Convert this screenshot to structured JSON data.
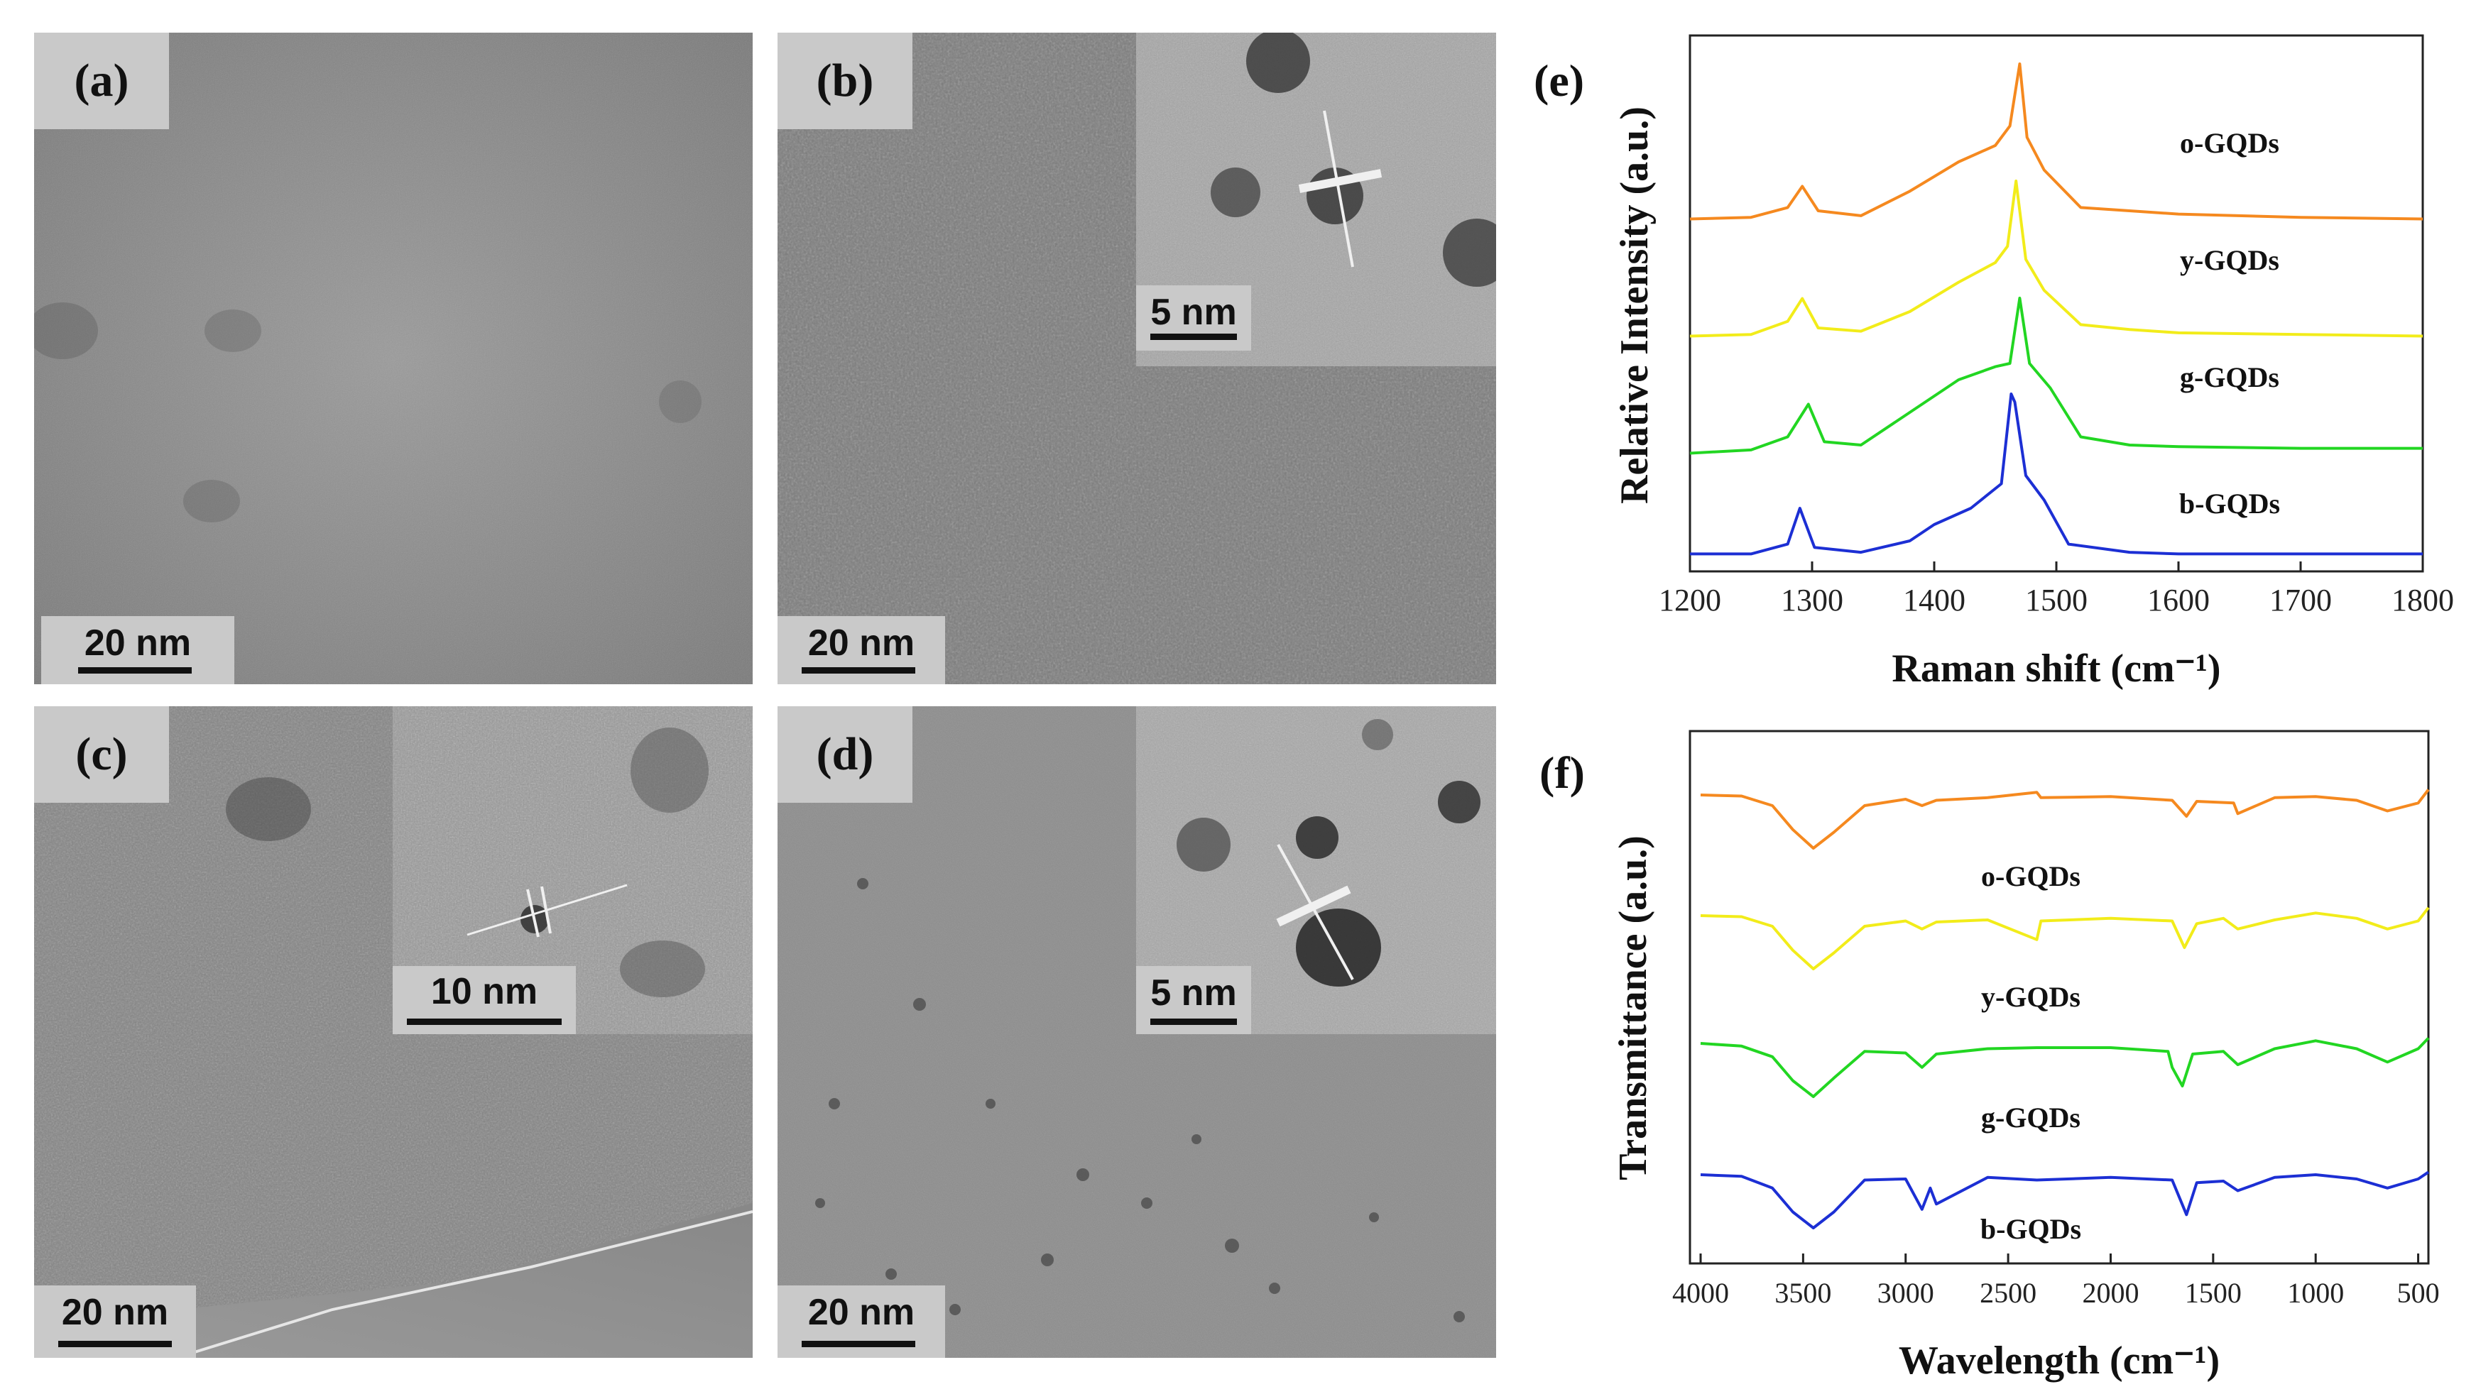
{
  "panels": {
    "a": {
      "label": "(a)",
      "scale": "20 nm"
    },
    "b": {
      "label": "(b)",
      "scale": "20 nm",
      "inset_scale": "5 nm"
    },
    "c": {
      "label": "(c)",
      "scale": "20 nm",
      "inset_scale": "10 nm"
    },
    "d": {
      "label": "(d)",
      "scale": "20 nm",
      "inset_scale": "5 nm"
    }
  },
  "chart_data": [
    {
      "type": "line",
      "panel_label": "(e)",
      "xlabel": "Raman shift (cm⁻¹)",
      "ylabel": "Relative Intensity (a.u.)",
      "xlim": [
        1200,
        1800
      ],
      "xticks": [
        1200,
        1300,
        1400,
        1500,
        1600,
        1700,
        1800
      ],
      "series": [
        {
          "name": "o-GQDs",
          "color": "#f5891f",
          "x": [
            1200,
            1250,
            1280,
            1292,
            1305,
            1340,
            1380,
            1420,
            1450,
            1462,
            1470,
            1476,
            1490,
            1520,
            1560,
            1600,
            1700,
            1800
          ],
          "y": [
            0.05,
            0.06,
            0.12,
            0.25,
            0.1,
            0.07,
            0.22,
            0.4,
            0.5,
            0.62,
            1.0,
            0.55,
            0.35,
            0.12,
            0.1,
            0.08,
            0.06,
            0.05
          ]
        },
        {
          "name": "y-GQDs",
          "color": "#f2ec1a",
          "x": [
            1200,
            1250,
            1280,
            1292,
            1305,
            1340,
            1380,
            1420,
            1450,
            1460,
            1467,
            1475,
            1490,
            1520,
            1560,
            1600,
            1700,
            1800
          ],
          "y": [
            0.05,
            0.06,
            0.14,
            0.28,
            0.1,
            0.08,
            0.2,
            0.38,
            0.5,
            0.6,
            1.0,
            0.52,
            0.33,
            0.12,
            0.09,
            0.07,
            0.06,
            0.05
          ]
        },
        {
          "name": "g-GQDs",
          "color": "#22d622",
          "x": [
            1200,
            1250,
            1280,
            1297,
            1310,
            1340,
            1380,
            1420,
            1450,
            1462,
            1470,
            1478,
            1495,
            1520,
            1560,
            1600,
            1700,
            1800
          ],
          "y": [
            0.05,
            0.07,
            0.15,
            0.35,
            0.12,
            0.1,
            0.3,
            0.5,
            0.58,
            0.6,
            1.0,
            0.6,
            0.45,
            0.15,
            0.1,
            0.09,
            0.08,
            0.08
          ]
        },
        {
          "name": "b-GQDs",
          "color": "#1c2fd4",
          "x": [
            1200,
            1250,
            1280,
            1290,
            1302,
            1340,
            1380,
            1400,
            1430,
            1455,
            1463,
            1466,
            1475,
            1490,
            1510,
            1560,
            1600,
            1700,
            1800
          ],
          "y": [
            0.02,
            0.02,
            0.08,
            0.3,
            0.06,
            0.03,
            0.1,
            0.2,
            0.3,
            0.45,
            1.0,
            0.95,
            0.5,
            0.35,
            0.08,
            0.03,
            0.02,
            0.02,
            0.02
          ]
        }
      ]
    },
    {
      "type": "line",
      "panel_label": "(f)",
      "xlabel": "Wavelength (cm⁻¹)",
      "ylabel": "Transmittance (a.u.)",
      "xlim": [
        4000,
        450
      ],
      "xticks": [
        4000,
        3500,
        3000,
        2500,
        2000,
        1500,
        1000,
        500
      ],
      "series": [
        {
          "name": "o-GQDs",
          "color": "#f5891f",
          "x": [
            4000,
            3800,
            3650,
            3550,
            3450,
            3350,
            3200,
            3000,
            2920,
            2850,
            2600,
            2360,
            2340,
            2000,
            1700,
            1630,
            1580,
            1400,
            1380,
            1200,
            1000,
            800,
            650,
            500,
            450
          ],
          "y": [
            1.0,
            0.98,
            0.8,
            0.35,
            0.0,
            0.3,
            0.8,
            0.92,
            0.8,
            0.9,
            0.95,
            1.05,
            0.95,
            0.97,
            0.9,
            0.6,
            0.88,
            0.85,
            0.65,
            0.95,
            0.97,
            0.9,
            0.7,
            0.85,
            1.1
          ]
        },
        {
          "name": "y-GQDs",
          "color": "#f2ec1a",
          "x": [
            4000,
            3800,
            3650,
            3550,
            3450,
            3350,
            3200,
            3000,
            2920,
            2850,
            2600,
            2360,
            2340,
            2000,
            1700,
            1640,
            1580,
            1450,
            1380,
            1200,
            1000,
            800,
            650,
            500,
            450
          ],
          "y": [
            1.0,
            0.98,
            0.8,
            0.35,
            0.0,
            0.3,
            0.8,
            0.9,
            0.75,
            0.88,
            0.92,
            0.55,
            0.9,
            0.95,
            0.9,
            0.4,
            0.85,
            0.95,
            0.75,
            0.92,
            1.05,
            0.95,
            0.75,
            0.9,
            1.15
          ]
        },
        {
          "name": "g-GQDs",
          "color": "#22d622",
          "x": [
            4000,
            3800,
            3650,
            3550,
            3450,
            3350,
            3200,
            3000,
            2920,
            2850,
            2600,
            2360,
            2000,
            1720,
            1700,
            1650,
            1600,
            1450,
            1380,
            1200,
            1000,
            800,
            650,
            500,
            450
          ],
          "y": [
            1.0,
            0.95,
            0.75,
            0.3,
            0.0,
            0.35,
            0.85,
            0.82,
            0.55,
            0.8,
            0.9,
            0.92,
            0.92,
            0.85,
            0.55,
            0.2,
            0.8,
            0.85,
            0.6,
            0.9,
            1.05,
            0.9,
            0.65,
            0.9,
            1.1
          ]
        },
        {
          "name": "b-GQDs",
          "color": "#1c2fd4",
          "x": [
            4000,
            3800,
            3650,
            3550,
            3450,
            3350,
            3200,
            3000,
            2920,
            2880,
            2850,
            2600,
            2360,
            2000,
            1700,
            1630,
            1580,
            1450,
            1380,
            1200,
            1000,
            800,
            650,
            500,
            450
          ],
          "y": [
            1.0,
            0.97,
            0.75,
            0.3,
            0.0,
            0.3,
            0.9,
            0.92,
            0.35,
            0.75,
            0.45,
            0.95,
            0.9,
            0.95,
            0.9,
            0.25,
            0.85,
            0.88,
            0.7,
            0.95,
            1.0,
            0.92,
            0.75,
            0.92,
            1.05
          ]
        }
      ]
    }
  ]
}
